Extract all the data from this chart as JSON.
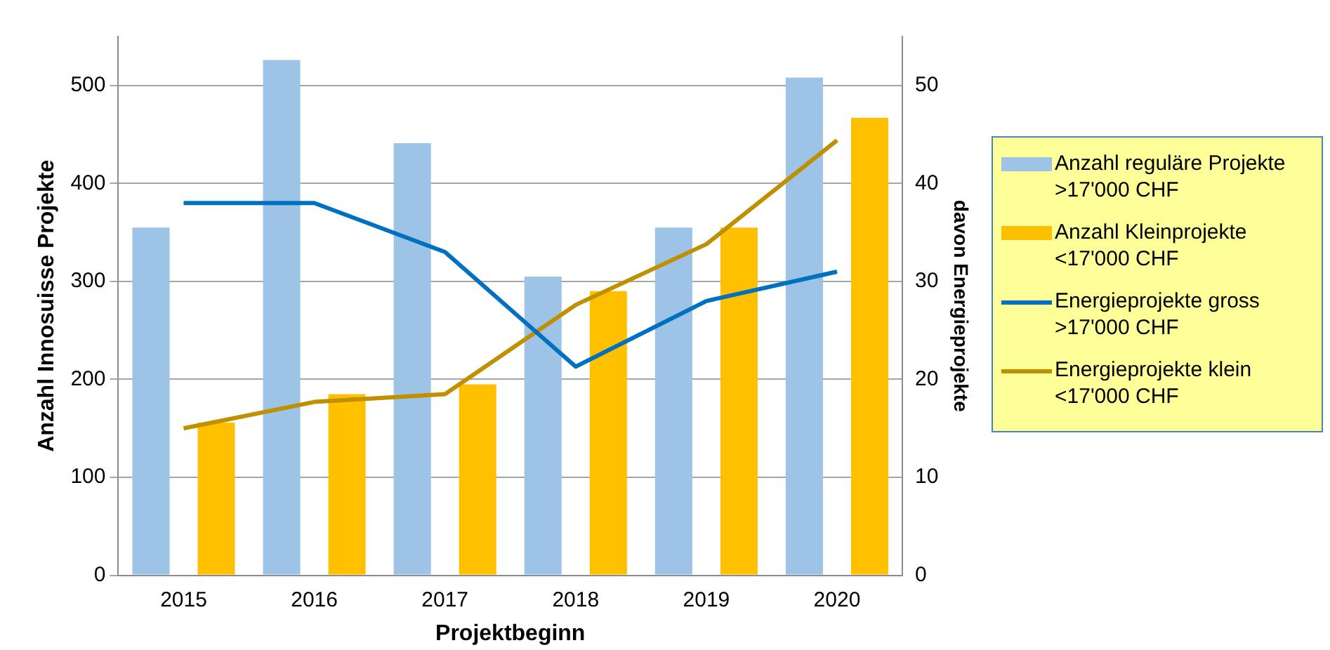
{
  "chart_data": {
    "type": "bar",
    "xlabel": "Projektbeginn",
    "ylabel": "Anzahl Innosuisse Projekte",
    "y2label": "davon Energieprojekte",
    "categories": [
      "2015",
      "2016",
      "2017",
      "2018",
      "2019",
      "2020"
    ],
    "series": [
      {
        "name": "Anzahl reguläre Projekte >17'000 CHF",
        "color": "#9dc3e6",
        "values": [
          355,
          526,
          441,
          305,
          355,
          508
        ]
      },
      {
        "name": "Anzahl Kleinprojekte <17'000 CHF",
        "color": "#ffc000",
        "values": [
          156,
          185,
          195,
          290,
          355,
          467
        ]
      },
      {
        "name": "Energieprojekte gross >17'000 CHF",
        "type": "line",
        "axis": "y2",
        "color": "#0070c0",
        "values": [
          38,
          38,
          33,
          21.3,
          28,
          31
        ]
      },
      {
        "name": "Energieprojekte klein <17'000 CHF",
        "type": "line",
        "axis": "y2",
        "color": "#bf9000",
        "values": [
          15,
          17.7,
          18.5,
          27.6,
          33.8,
          44.4
        ]
      }
    ],
    "ylim": [
      0,
      550
    ],
    "yticks": [
      0,
      100,
      200,
      300,
      400,
      500
    ],
    "y2lim": [
      0,
      55
    ],
    "y2ticks": [
      0,
      10,
      20,
      30,
      40,
      50
    ],
    "grid": "y",
    "legend": "right",
    "marker": "none"
  }
}
